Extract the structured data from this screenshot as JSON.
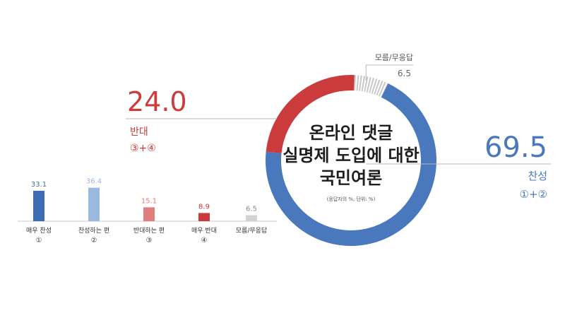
{
  "colors": {
    "support": "#4a78bd",
    "oppose": "#cc3b3b",
    "unknown": "#c8c8c8",
    "bar_strong_support": "#3d6eb5",
    "bar_support": "#9bb8e0",
    "bar_oppose": "#e07e7e",
    "bar_strong_oppose": "#c93a3a",
    "bar_unknown": "#d2d2d2",
    "leader": "#b8b8b8",
    "axis": "#c8c8c8"
  },
  "chart_data": [
    {
      "type": "pie",
      "title": "온라인 댓글 실명제 도입에 대한 국민여론",
      "title_lines": [
        "온라인 댓글",
        "실명제 도입에 대한",
        "국민여론"
      ],
      "note": "(응답자의 %, 단위: %)",
      "slices": [
        {
          "key": "support",
          "label": "찬성",
          "sublabel": "①+②",
          "value": 69.5,
          "value_text": "69.5"
        },
        {
          "key": "oppose",
          "label": "반대",
          "sublabel": "③+④",
          "value": 24.0,
          "value_text": "24.0"
        },
        {
          "key": "unknown",
          "label": "모름/무응답",
          "value": 6.5,
          "value_text": "6.5"
        }
      ]
    },
    {
      "type": "bar",
      "categories": [
        "매우 찬성",
        "찬성하는 편",
        "반대하는 편",
        "매우 반대",
        "모름/무응답"
      ],
      "markers": [
        "①",
        "②",
        "③",
        "④",
        ""
      ],
      "values": [
        33.1,
        36.4,
        15.1,
        8.9,
        6.5
      ],
      "value_labels": [
        "33.1",
        "36.4",
        "15.1",
        "8.9",
        "6.5"
      ],
      "ylim": [
        0,
        40
      ]
    }
  ]
}
